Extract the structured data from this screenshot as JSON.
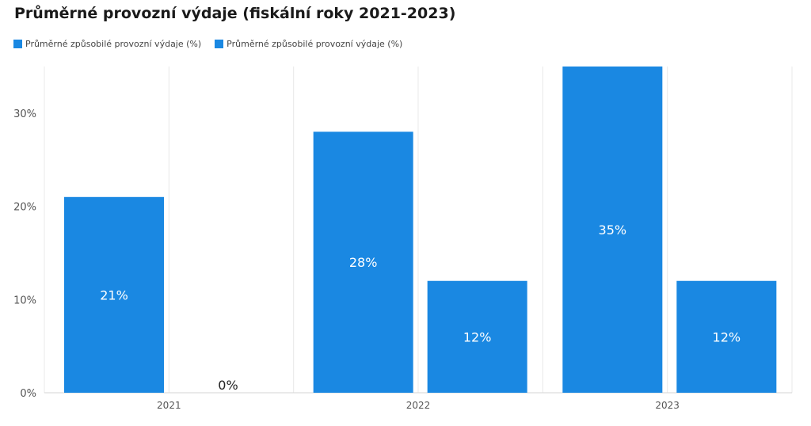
{
  "colors": {
    "bar": "#1a88e2",
    "grid": "#e8e8e8",
    "axis_text": "#555555",
    "label_inside": "#ffffff",
    "label_outside": "#222222"
  },
  "chart_data": {
    "type": "bar",
    "title": "Průměrné provozní výdaje (fiskální roky 2021-2023)",
    "categories": [
      "2021",
      "2022",
      "2023"
    ],
    "series": [
      {
        "name": "Průměrné způsobilé provozní výdaje (%)",
        "values": [
          21,
          28,
          35
        ],
        "labels": [
          "21%",
          "28%",
          "35%"
        ]
      },
      {
        "name": "Průměrné způsobilé provozní výdaje (%)",
        "values": [
          0,
          12,
          12
        ],
        "labels": [
          "0%",
          "12%",
          "12%"
        ]
      }
    ],
    "y_ticks": [
      0,
      10,
      20,
      30
    ],
    "y_tick_labels": [
      "0%",
      "10%",
      "20%",
      "30%"
    ],
    "ylim": [
      0,
      35
    ],
    "grid": "vertical",
    "legend_position": "top-left",
    "xlabel": "",
    "ylabel": ""
  }
}
